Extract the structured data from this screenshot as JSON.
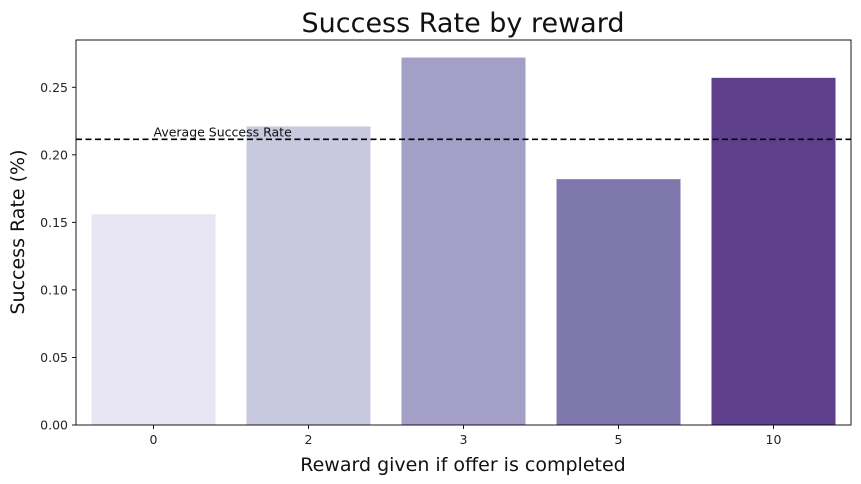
{
  "chart_data": {
    "type": "bar",
    "title": "Success Rate by reward",
    "xlabel": "Reward given if offer is completed",
    "ylabel": "Success Rate (%)",
    "categories": [
      "0",
      "2",
      "3",
      "5",
      "10"
    ],
    "values": [
      0.156,
      0.221,
      0.272,
      0.182,
      0.257
    ],
    "colors": [
      "#e7e5f2",
      "#c8c9df",
      "#a39fc6",
      "#7f78ac",
      "#5e3f8b"
    ],
    "ylim": [
      0,
      0.285
    ],
    "yticks": [
      0.0,
      0.05,
      0.1,
      0.15,
      0.2,
      0.25
    ],
    "ytick_labels": [
      "0.00",
      "0.05",
      "0.10",
      "0.15",
      "0.20",
      "0.25"
    ],
    "grid": false,
    "reference_line": {
      "value": 0.2115,
      "label": "Average Success Rate",
      "style": "dashed",
      "color": "#000000"
    }
  }
}
